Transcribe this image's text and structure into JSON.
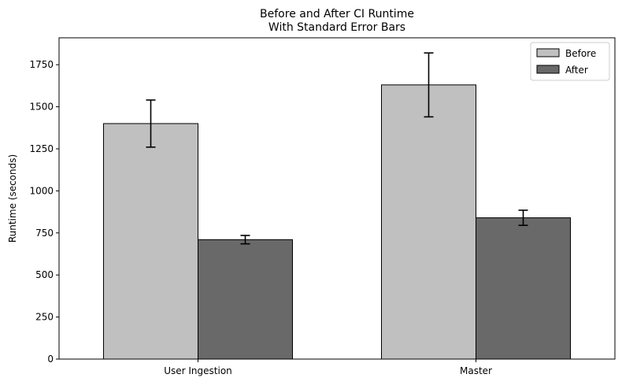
{
  "chart_data": {
    "type": "bar",
    "title": "Before and After CI Runtime",
    "subtitle": "With Standard Error Bars",
    "xlabel": "",
    "ylabel": "Runtime (seconds)",
    "categories": [
      "User Ingestion",
      "Master"
    ],
    "series": [
      {
        "name": "Before",
        "color": "#c0c0c0",
        "values": [
          1400,
          1630
        ],
        "errors": [
          140,
          190
        ]
      },
      {
        "name": "After",
        "color": "#696969",
        "values": [
          710,
          840
        ],
        "errors": [
          25,
          45
        ]
      }
    ],
    "ylim": [
      0,
      1910
    ],
    "yticks": [
      0,
      250,
      500,
      750,
      1000,
      1250,
      1500,
      1750
    ],
    "grid": false,
    "legend_position": "top-right"
  }
}
